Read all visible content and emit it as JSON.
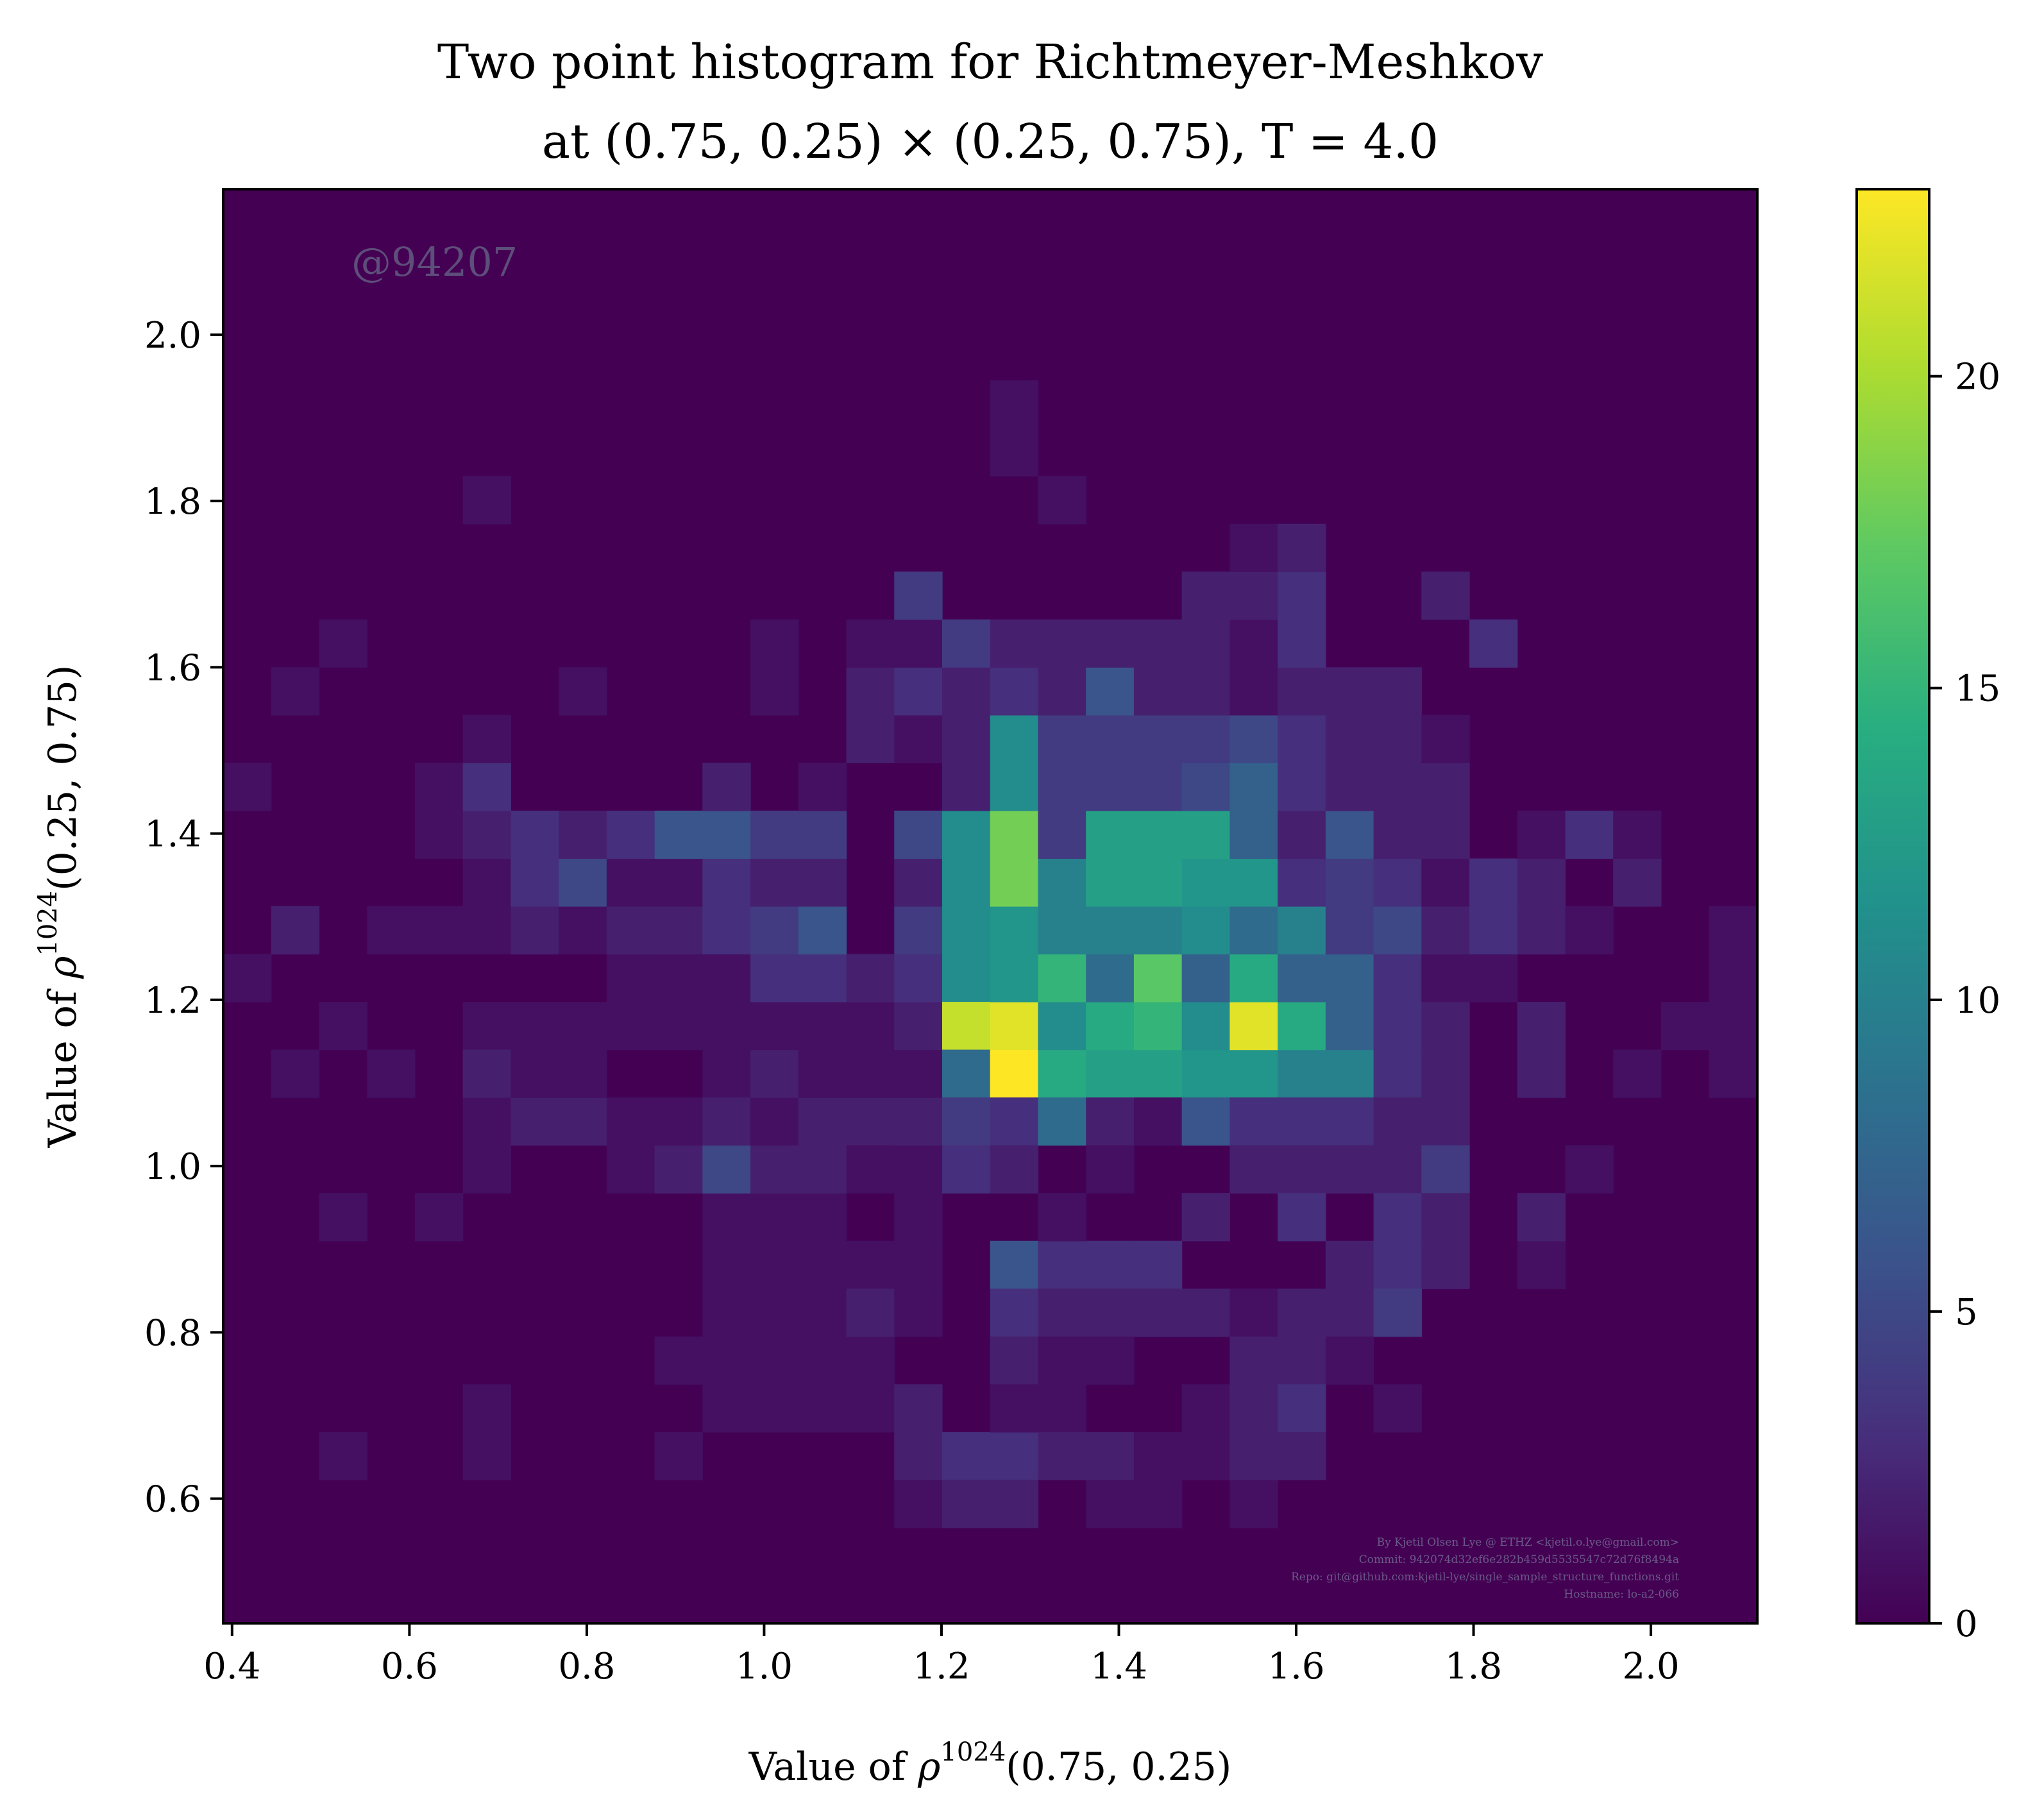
{
  "chart_data": {
    "type": "heatmap",
    "title_line1": "Two point histogram for Richtmeyer-Meshkov",
    "title_line2": "at (0.75, 0.25) × (0.25, 0.75), T = 4.0",
    "xlabel": {
      "prefix": "Value of ",
      "symbol": "ρ",
      "sup": "1024",
      "suffix": "(0.75, 0.25)"
    },
    "ylabel": {
      "prefix": "Value of ",
      "symbol": "ρ",
      "sup": "1024",
      "suffix": "(0.25, 0.75)"
    },
    "xlim": [
      0.39,
      2.12
    ],
    "ylim": [
      0.45,
      2.175
    ],
    "xticks": [
      "0.4",
      "0.6",
      "0.8",
      "1.0",
      "1.2",
      "1.4",
      "1.6",
      "1.8",
      "2.0"
    ],
    "yticks": [
      "0.6",
      "0.8",
      "1.0",
      "1.2",
      "1.4",
      "1.6",
      "1.8",
      "2.0"
    ],
    "bins": {
      "x0": 0.39,
      "dx": 0.05405,
      "y0": 0.45,
      "dy": 0.0575,
      "nx": 32,
      "ny": 30
    },
    "colorbar": {
      "min": 0,
      "max": 23,
      "ticks": [
        "0",
        "5",
        "10",
        "15",
        "20"
      ],
      "colormap": "viridis"
    },
    "cells": [
      [
        0,
        13,
        1
      ],
      [
        0,
        17,
        1
      ],
      [
        1,
        11,
        1
      ],
      [
        1,
        19,
        1
      ],
      [
        1,
        14,
        2
      ],
      [
        2,
        12,
        1
      ],
      [
        2,
        20,
        1
      ],
      [
        2,
        8,
        1
      ],
      [
        2,
        3,
        1
      ],
      [
        3,
        14,
        1
      ],
      [
        3,
        11,
        1
      ],
      [
        4,
        14,
        1
      ],
      [
        4,
        16,
        1
      ],
      [
        4,
        17,
        1
      ],
      [
        4,
        8,
        1
      ],
      [
        5,
        12,
        1
      ],
      [
        5,
        14,
        1
      ],
      [
        5,
        15,
        1
      ],
      [
        5,
        16,
        2
      ],
      [
        5,
        17,
        3
      ],
      [
        5,
        18,
        1
      ],
      [
        5,
        23,
        1
      ],
      [
        5,
        3,
        1
      ],
      [
        5,
        9,
        1
      ],
      [
        5,
        10,
        1
      ],
      [
        5,
        11,
        2
      ],
      [
        5,
        4,
        1
      ],
      [
        6,
        12,
        1
      ],
      [
        6,
        14,
        2
      ],
      [
        6,
        15,
        3
      ],
      [
        6,
        16,
        3
      ],
      [
        6,
        10,
        2
      ],
      [
        6,
        11,
        1
      ],
      [
        7,
        12,
        1
      ],
      [
        7,
        14,
        1
      ],
      [
        7,
        15,
        5
      ],
      [
        7,
        16,
        2
      ],
      [
        7,
        19,
        1
      ],
      [
        7,
        10,
        2
      ],
      [
        7,
        11,
        1
      ],
      [
        8,
        12,
        1
      ],
      [
        8,
        13,
        1
      ],
      [
        8,
        14,
        2
      ],
      [
        8,
        15,
        1
      ],
      [
        8,
        16,
        3
      ],
      [
        8,
        9,
        1
      ],
      [
        8,
        10,
        1
      ],
      [
        9,
        12,
        1
      ],
      [
        9,
        13,
        1
      ],
      [
        9,
        14,
        2
      ],
      [
        9,
        15,
        1
      ],
      [
        9,
        16,
        6
      ],
      [
        9,
        9,
        2
      ],
      [
        9,
        10,
        1
      ],
      [
        9,
        3,
        1
      ],
      [
        9,
        5,
        1
      ],
      [
        10,
        8,
        1
      ],
      [
        10,
        11,
        1
      ],
      [
        10,
        12,
        1
      ],
      [
        10,
        13,
        1
      ],
      [
        10,
        14,
        3
      ],
      [
        10,
        15,
        3
      ],
      [
        10,
        16,
        6
      ],
      [
        10,
        17,
        2
      ],
      [
        10,
        9,
        5
      ],
      [
        10,
        10,
        2
      ],
      [
        10,
        4,
        1
      ],
      [
        10,
        7,
        1
      ],
      [
        10,
        5,
        1
      ],
      [
        10,
        6,
        1
      ],
      [
        11,
        8,
        1
      ],
      [
        11,
        9,
        2
      ],
      [
        11,
        10,
        1
      ],
      [
        11,
        11,
        2
      ],
      [
        11,
        12,
        1
      ],
      [
        11,
        13,
        3
      ],
      [
        11,
        14,
        4
      ],
      [
        11,
        15,
        2
      ],
      [
        11,
        16,
        4
      ],
      [
        11,
        19,
        1
      ],
      [
        11,
        20,
        1
      ],
      [
        11,
        4,
        1
      ],
      [
        11,
        5,
        1
      ],
      [
        11,
        6,
        1
      ],
      [
        11,
        7,
        1
      ],
      [
        12,
        8,
        1
      ],
      [
        12,
        9,
        2
      ],
      [
        12,
        10,
        2
      ],
      [
        12,
        11,
        1
      ],
      [
        12,
        12,
        1
      ],
      [
        12,
        13,
        3
      ],
      [
        12,
        14,
        6
      ],
      [
        12,
        15,
        2
      ],
      [
        12,
        16,
        4
      ],
      [
        12,
        17,
        1
      ],
      [
        12,
        4,
        1
      ],
      [
        12,
        5,
        1
      ],
      [
        12,
        6,
        1
      ],
      [
        12,
        7,
        1
      ],
      [
        13,
        7,
        1
      ],
      [
        13,
        10,
        2
      ],
      [
        13,
        11,
        1
      ],
      [
        13,
        12,
        1
      ],
      [
        13,
        13,
        2
      ],
      [
        13,
        18,
        2
      ],
      [
        13,
        19,
        2
      ],
      [
        13,
        20,
        1
      ],
      [
        13,
        4,
        1
      ],
      [
        13,
        5,
        1
      ],
      [
        13,
        6,
        2
      ],
      [
        13,
        9,
        1
      ],
      [
        14,
        8,
        1
      ],
      [
        14,
        9,
        1
      ],
      [
        14,
        10,
        2
      ],
      [
        14,
        11,
        1
      ],
      [
        14,
        12,
        2
      ],
      [
        14,
        13,
        3
      ],
      [
        14,
        14,
        4
      ],
      [
        14,
        15,
        2
      ],
      [
        14,
        16,
        5
      ],
      [
        14,
        18,
        1
      ],
      [
        14,
        19,
        3
      ],
      [
        14,
        20,
        1
      ],
      [
        14,
        21,
        4
      ],
      [
        14,
        2,
        1
      ],
      [
        14,
        3,
        2
      ],
      [
        14,
        4,
        2
      ],
      [
        14,
        6,
        1
      ],
      [
        14,
        7,
        1
      ],
      [
        15,
        14,
        11
      ],
      [
        15,
        15,
        11
      ],
      [
        15,
        16,
        11
      ],
      [
        15,
        13,
        11
      ],
      [
        15,
        12,
        21
      ],
      [
        15,
        11,
        8
      ],
      [
        15,
        10,
        4
      ],
      [
        15,
        9,
        3
      ],
      [
        15,
        17,
        2
      ],
      [
        15,
        18,
        2
      ],
      [
        15,
        19,
        2
      ],
      [
        15,
        20,
        4
      ],
      [
        15,
        3,
        3
      ],
      [
        15,
        2,
        2
      ],
      [
        16,
        11,
        23
      ],
      [
        16,
        12,
        22
      ],
      [
        16,
        13,
        12
      ],
      [
        16,
        14,
        12
      ],
      [
        16,
        15,
        18
      ],
      [
        16,
        16,
        18
      ],
      [
        16,
        17,
        11
      ],
      [
        16,
        18,
        11
      ],
      [
        16,
        19,
        3
      ],
      [
        16,
        20,
        2
      ],
      [
        16,
        10,
        3
      ],
      [
        16,
        9,
        2
      ],
      [
        16,
        7,
        6
      ],
      [
        16,
        6,
        3
      ],
      [
        16,
        5,
        2
      ],
      [
        16,
        3,
        3
      ],
      [
        16,
        2,
        2
      ],
      [
        16,
        4,
        1
      ],
      [
        16,
        25,
        1
      ],
      [
        16,
        24,
        1
      ],
      [
        17,
        11,
        14
      ],
      [
        17,
        12,
        11
      ],
      [
        17,
        13,
        15
      ],
      [
        17,
        14,
        10
      ],
      [
        17,
        15,
        10
      ],
      [
        17,
        16,
        4
      ],
      [
        17,
        17,
        4
      ],
      [
        17,
        18,
        4
      ],
      [
        17,
        19,
        2
      ],
      [
        17,
        20,
        2
      ],
      [
        17,
        10,
        8
      ],
      [
        17,
        7,
        3
      ],
      [
        17,
        8,
        1
      ],
      [
        17,
        6,
        2
      ],
      [
        17,
        4,
        1
      ],
      [
        17,
        3,
        2
      ],
      [
        17,
        5,
        1
      ],
      [
        17,
        23,
        1
      ],
      [
        18,
        11,
        13
      ],
      [
        18,
        12,
        14
      ],
      [
        18,
        13,
        8
      ],
      [
        18,
        14,
        10
      ],
      [
        18,
        15,
        13
      ],
      [
        18,
        16,
        13
      ],
      [
        18,
        17,
        4
      ],
      [
        18,
        18,
        4
      ],
      [
        18,
        19,
        6
      ],
      [
        18,
        20,
        2
      ],
      [
        18,
        10,
        2
      ],
      [
        18,
        9,
        1
      ],
      [
        18,
        7,
        3
      ],
      [
        18,
        6,
        2
      ],
      [
        18,
        3,
        2
      ],
      [
        18,
        2,
        1
      ],
      [
        18,
        5,
        1
      ],
      [
        19,
        11,
        13
      ],
      [
        19,
        12,
        15
      ],
      [
        19,
        13,
        17
      ],
      [
        19,
        14,
        10
      ],
      [
        19,
        15,
        13
      ],
      [
        19,
        16,
        13
      ],
      [
        19,
        17,
        4
      ],
      [
        19,
        18,
        4
      ],
      [
        19,
        19,
        2
      ],
      [
        19,
        20,
        2
      ],
      [
        19,
        10,
        1
      ],
      [
        19,
        7,
        3
      ],
      [
        19,
        6,
        2
      ],
      [
        19,
        3,
        1
      ],
      [
        19,
        2,
        1
      ],
      [
        20,
        11,
        12
      ],
      [
        20,
        12,
        11
      ],
      [
        20,
        13,
        7
      ],
      [
        20,
        14,
        11
      ],
      [
        20,
        15,
        12
      ],
      [
        20,
        16,
        13
      ],
      [
        20,
        17,
        5
      ],
      [
        20,
        18,
        4
      ],
      [
        20,
        19,
        2
      ],
      [
        20,
        20,
        2
      ],
      [
        20,
        10,
        6
      ],
      [
        20,
        8,
        2
      ],
      [
        20,
        6,
        2
      ],
      [
        20,
        3,
        1
      ],
      [
        20,
        4,
        1
      ],
      [
        20,
        21,
        2
      ],
      [
        21,
        11,
        12
      ],
      [
        21,
        12,
        22
      ],
      [
        21,
        13,
        14
      ],
      [
        21,
        14,
        8
      ],
      [
        21,
        15,
        12
      ],
      [
        21,
        16,
        7
      ],
      [
        21,
        17,
        7
      ],
      [
        21,
        18,
        5
      ],
      [
        21,
        19,
        1
      ],
      [
        21,
        20,
        1
      ],
      [
        21,
        10,
        3
      ],
      [
        21,
        9,
        2
      ],
      [
        21,
        6,
        1
      ],
      [
        21,
        5,
        2
      ],
      [
        21,
        4,
        2
      ],
      [
        21,
        3,
        2
      ],
      [
        21,
        2,
        1
      ],
      [
        21,
        21,
        2
      ],
      [
        21,
        22,
        1
      ],
      [
        22,
        11,
        10
      ],
      [
        22,
        12,
        14
      ],
      [
        22,
        13,
        7
      ],
      [
        22,
        14,
        10
      ],
      [
        22,
        15,
        3
      ],
      [
        22,
        16,
        2
      ],
      [
        22,
        17,
        3
      ],
      [
        22,
        18,
        3
      ],
      [
        22,
        19,
        2
      ],
      [
        22,
        20,
        3
      ],
      [
        22,
        10,
        3
      ],
      [
        22,
        9,
        2
      ],
      [
        22,
        8,
        3
      ],
      [
        22,
        6,
        2
      ],
      [
        22,
        5,
        2
      ],
      [
        22,
        4,
        3
      ],
      [
        22,
        3,
        2
      ],
      [
        22,
        21,
        3
      ],
      [
        22,
        22,
        2
      ],
      [
        23,
        11,
        10
      ],
      [
        23,
        12,
        7
      ],
      [
        23,
        13,
        7
      ],
      [
        23,
        14,
        4
      ],
      [
        23,
        15,
        4
      ],
      [
        23,
        16,
        6
      ],
      [
        23,
        17,
        2
      ],
      [
        23,
        18,
        2
      ],
      [
        23,
        19,
        2
      ],
      [
        23,
        10,
        3
      ],
      [
        23,
        9,
        2
      ],
      [
        23,
        7,
        2
      ],
      [
        23,
        6,
        2
      ],
      [
        23,
        5,
        1
      ],
      [
        24,
        11,
        3
      ],
      [
        24,
        12,
        3
      ],
      [
        24,
        13,
        3
      ],
      [
        24,
        14,
        5
      ],
      [
        24,
        15,
        3
      ],
      [
        24,
        16,
        2
      ],
      [
        24,
        17,
        2
      ],
      [
        24,
        18,
        2
      ],
      [
        24,
        19,
        2
      ],
      [
        24,
        10,
        2
      ],
      [
        24,
        9,
        2
      ],
      [
        24,
        8,
        3
      ],
      [
        24,
        7,
        3
      ],
      [
        24,
        6,
        4
      ],
      [
        24,
        4,
        1
      ],
      [
        25,
        11,
        2
      ],
      [
        25,
        12,
        2
      ],
      [
        25,
        13,
        1
      ],
      [
        25,
        14,
        2
      ],
      [
        25,
        15,
        1
      ],
      [
        25,
        16,
        2
      ],
      [
        25,
        17,
        2
      ],
      [
        25,
        18,
        1
      ],
      [
        25,
        10,
        2
      ],
      [
        25,
        9,
        4
      ],
      [
        25,
        8,
        2
      ],
      [
        25,
        7,
        2
      ],
      [
        25,
        21,
        2
      ],
      [
        26,
        13,
        1
      ],
      [
        26,
        14,
        3
      ],
      [
        26,
        15,
        3
      ],
      [
        26,
        20,
        3
      ],
      [
        27,
        11,
        2
      ],
      [
        27,
        12,
        2
      ],
      [
        27,
        14,
        2
      ],
      [
        27,
        15,
        2
      ],
      [
        27,
        16,
        1
      ],
      [
        27,
        7,
        1
      ],
      [
        27,
        8,
        2
      ],
      [
        28,
        9,
        1
      ],
      [
        28,
        14,
        1
      ],
      [
        28,
        16,
        3
      ],
      [
        29,
        11,
        1
      ],
      [
        29,
        15,
        2
      ],
      [
        29,
        16,
        1
      ],
      [
        30,
        12,
        1
      ],
      [
        31,
        11,
        1
      ],
      [
        31,
        12,
        1
      ],
      [
        31,
        13,
        1
      ],
      [
        31,
        14,
        1
      ]
    ],
    "watermark": "@94207",
    "credits": [
      "By Kjetil Olsen Lye @ ETHZ <kjetil.o.lye@gmail.com>",
      "Commit: 942074d32ef6e282b459d5535547c72d76f8494a",
      "Repo: git@github.com:kjetil-lye/single_sample_structure_functions.git",
      "Hostname: lo-a2-066"
    ]
  }
}
